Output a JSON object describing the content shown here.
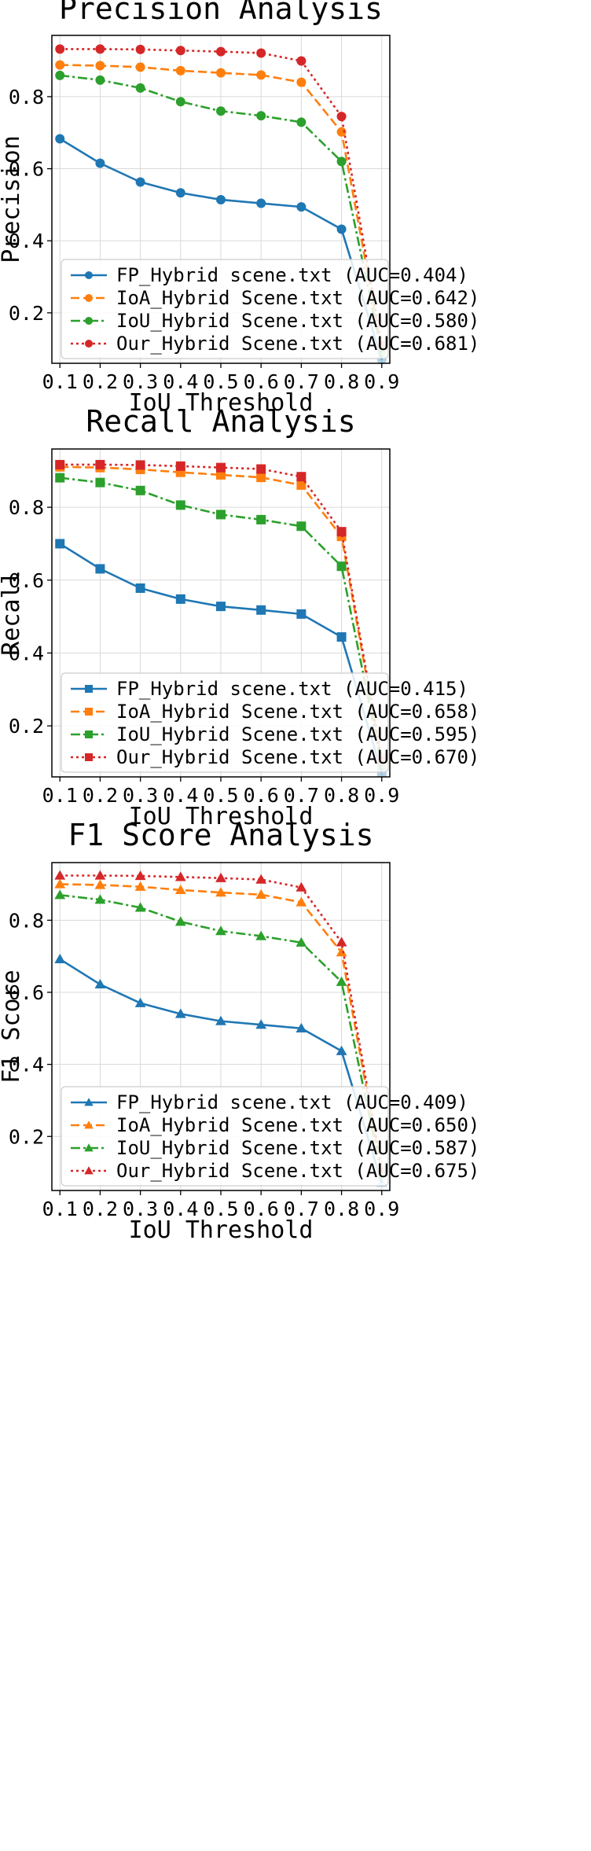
{
  "chart_data": [
    {
      "type": "line",
      "title": "Precision Analysis",
      "xlabel": "IoU Threshold",
      "ylabel": "Precision",
      "marker": "circle",
      "x": [
        0.1,
        0.2,
        0.3,
        0.4,
        0.5,
        0.6,
        0.7,
        0.8,
        0.9
      ],
      "xticks": [
        "0.1",
        "0.2",
        "0.3",
        "0.4",
        "0.5",
        "0.6",
        "0.7",
        "0.8",
        "0.9"
      ],
      "yticks": [
        0.2,
        0.4,
        0.6,
        0.8
      ],
      "yticklabels": [
        "0.2",
        "0.4",
        "0.6",
        "0.8"
      ],
      "xlim": [
        0.08,
        0.92
      ],
      "ylim": [
        0.06,
        0.97
      ],
      "legend_position": "lower-left",
      "series": [
        {
          "name": "FP_Hybrid scene.txt (AUC=0.404)",
          "color": "#1f77b4",
          "dash": "solid",
          "values": [
            0.683,
            0.615,
            0.563,
            0.533,
            0.514,
            0.504,
            0.494,
            0.432,
            0.07
          ]
        },
        {
          "name": "IoA_Hybrid Scene.txt (AUC=0.642)",
          "color": "#ff7f0e",
          "dash": "dashed",
          "values": [
            0.888,
            0.886,
            0.882,
            0.872,
            0.866,
            0.86,
            0.84,
            0.702,
            0.1
          ]
        },
        {
          "name": "IoU_Hybrid Scene.txt (AUC=0.580)",
          "color": "#2ca02c",
          "dash": "dashdot",
          "values": [
            0.859,
            0.846,
            0.824,
            0.786,
            0.76,
            0.747,
            0.729,
            0.62,
            0.09
          ]
        },
        {
          "name": "Our_Hybrid Scene.txt (AUC=0.681)",
          "color": "#d62728",
          "dash": "dotted",
          "values": [
            0.932,
            0.932,
            0.931,
            0.928,
            0.925,
            0.921,
            0.899,
            0.745,
            0.11
          ]
        }
      ]
    },
    {
      "type": "line",
      "title": "Recall Analysis",
      "xlabel": "IoU Threshold",
      "ylabel": "Recall",
      "marker": "square",
      "x": [
        0.1,
        0.2,
        0.3,
        0.4,
        0.5,
        0.6,
        0.7,
        0.8,
        0.9
      ],
      "xticks": [
        "0.1",
        "0.2",
        "0.3",
        "0.4",
        "0.5",
        "0.6",
        "0.7",
        "0.8",
        "0.9"
      ],
      "yticks": [
        0.2,
        0.4,
        0.6,
        0.8
      ],
      "yticklabels": [
        "0.2",
        "0.4",
        "0.6",
        "0.8"
      ],
      "xlim": [
        0.08,
        0.92
      ],
      "ylim": [
        0.06,
        0.96
      ],
      "legend_position": "lower-left",
      "series": [
        {
          "name": "FP_Hybrid scene.txt (AUC=0.415)",
          "color": "#1f77b4",
          "dash": "solid",
          "values": [
            0.7,
            0.631,
            0.578,
            0.548,
            0.528,
            0.518,
            0.507,
            0.444,
            0.072
          ]
        },
        {
          "name": "IoA_Hybrid Scene.txt (AUC=0.658)",
          "color": "#ff7f0e",
          "dash": "dashed",
          "values": [
            0.911,
            0.909,
            0.904,
            0.896,
            0.889,
            0.882,
            0.861,
            0.72,
            0.1
          ]
        },
        {
          "name": "IoU_Hybrid Scene.txt (AUC=0.595)",
          "color": "#2ca02c",
          "dash": "dashdot",
          "values": [
            0.881,
            0.868,
            0.846,
            0.806,
            0.78,
            0.766,
            0.748,
            0.638,
            0.09
          ]
        },
        {
          "name": "Our_Hybrid Scene.txt (AUC=0.670)",
          "color": "#d62728",
          "dash": "dotted",
          "values": [
            0.917,
            0.917,
            0.916,
            0.913,
            0.909,
            0.905,
            0.884,
            0.733,
            0.11
          ]
        }
      ]
    },
    {
      "type": "line",
      "title": "F1 Score Analysis",
      "xlabel": "IoU Threshold",
      "ylabel": "F1 Score",
      "marker": "triangle",
      "x": [
        0.1,
        0.2,
        0.3,
        0.4,
        0.5,
        0.6,
        0.7,
        0.8,
        0.9
      ],
      "xticks": [
        "0.1",
        "0.2",
        "0.3",
        "0.4",
        "0.5",
        "0.6",
        "0.7",
        "0.8",
        "0.9"
      ],
      "yticks": [
        0.2,
        0.4,
        0.6,
        0.8
      ],
      "yticklabels": [
        "0.2",
        "0.4",
        "0.6",
        "0.8"
      ],
      "xlim": [
        0.08,
        0.92
      ],
      "ylim": [
        0.05,
        0.96
      ],
      "legend_position": "lower-left",
      "series": [
        {
          "name": "FP_Hybrid scene.txt (AUC=0.409)",
          "color": "#1f77b4",
          "dash": "solid",
          "values": [
            0.692,
            0.622,
            0.57,
            0.54,
            0.52,
            0.51,
            0.5,
            0.437,
            0.071
          ]
        },
        {
          "name": "IoA_Hybrid Scene.txt (AUC=0.650)",
          "color": "#ff7f0e",
          "dash": "dashed",
          "values": [
            0.9,
            0.898,
            0.893,
            0.884,
            0.877,
            0.871,
            0.85,
            0.711,
            0.1
          ]
        },
        {
          "name": "IoU_Hybrid Scene.txt (AUC=0.587)",
          "color": "#2ca02c",
          "dash": "dashdot",
          "values": [
            0.87,
            0.857,
            0.835,
            0.796,
            0.77,
            0.756,
            0.738,
            0.629,
            0.09
          ]
        },
        {
          "name": "Our_Hybrid Scene.txt (AUC=0.675)",
          "color": "#d62728",
          "dash": "dotted",
          "values": [
            0.924,
            0.924,
            0.923,
            0.92,
            0.917,
            0.913,
            0.891,
            0.739,
            0.11
          ]
        }
      ]
    }
  ]
}
